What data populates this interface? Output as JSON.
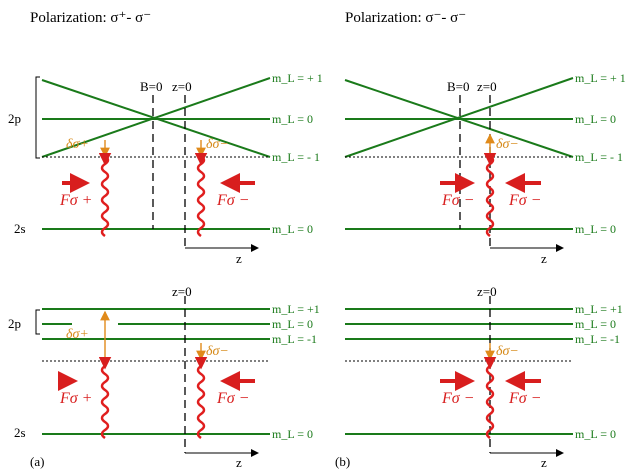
{
  "headers": {
    "left": "Polarization: σ⁺- σ⁻",
    "right": "Polarization:  σ⁻- σ⁻"
  },
  "axis": {
    "b_zero": "B=0",
    "z_zero": "z=0",
    "z": "z"
  },
  "states": {
    "p2": "2p",
    "s2": "2s"
  },
  "ml_top": {
    "plus1": "m_L = + 1",
    "zero": "m_L = 0",
    "minus1": "m_L = - 1"
  },
  "ml_bottom": {
    "plus1": "m_L = +1",
    "zero": "m_L =  0",
    "minus1": "m_L = -1"
  },
  "ml_ground": "m_L = 0",
  "symbols": {
    "delta_plus": "δσ+",
    "delta_minus": "δσ−",
    "force_plus": "Fσ +",
    "force_minus": "Fσ −"
  },
  "panel_labels": {
    "a": "(a)",
    "b": "(b)"
  },
  "colors": {
    "level": "#1a7a1a",
    "detuning": "#e08a1a",
    "laser": "#e01e1e"
  }
}
